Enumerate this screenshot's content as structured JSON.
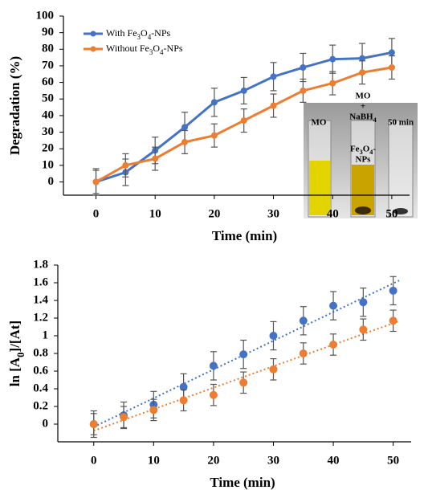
{
  "chart_data": [
    {
      "type": "line",
      "x": [
        0,
        5,
        10,
        15,
        20,
        25,
        30,
        35,
        40,
        45,
        50
      ],
      "series": [
        {
          "name": "With Fe3O4-NPs",
          "color": "#4472c4",
          "values": [
            0,
            5.8,
            19,
            33,
            48,
            55,
            63.5,
            69,
            74,
            74.5,
            78
          ],
          "errors": [
            8,
            8,
            8,
            9,
            8.5,
            8,
            8.5,
            8.5,
            8.5,
            9,
            8.5
          ]
        },
        {
          "name": "Without Fe3O4-NPs",
          "color": "#ed7d31",
          "values": [
            0,
            10,
            14,
            24,
            28,
            37,
            46,
            55,
            59.5,
            66,
            69
          ],
          "errors": [
            7,
            7,
            7,
            7,
            7,
            7,
            7,
            7,
            7,
            7,
            7
          ]
        }
      ],
      "xlim": [
        -5.5,
        53
      ],
      "ylim": [
        -8,
        100
      ],
      "xticks": [
        0,
        10,
        20,
        30,
        40,
        50
      ],
      "yticks": [
        0,
        10,
        20,
        30,
        40,
        50,
        60,
        70,
        80,
        90,
        100
      ],
      "xlabel": "Time (min)",
      "ylabel": "Degradation  (%)",
      "legend": "upper left",
      "inset_labels": [
        [
          "MO"
        ],
        [
          "MO",
          "+",
          "NaBH4"
        ],
        [
          "Fe3O4-",
          "NPs"
        ],
        [
          "50 min"
        ]
      ]
    },
    {
      "type": "scatter",
      "x": [
        0,
        5,
        10,
        15,
        20,
        25,
        30,
        35,
        40,
        45,
        50
      ],
      "series": [
        {
          "color": "#4472c4",
          "values": [
            0,
            0.1,
            0.22,
            0.42,
            0.66,
            0.79,
            1.0,
            1.17,
            1.34,
            1.38,
            1.51
          ],
          "errors": [
            0.15,
            0.15,
            0.15,
            0.15,
            0.16,
            0.16,
            0.16,
            0.16,
            0.16,
            0.16,
            0.16
          ]
        },
        {
          "color": "#ed7d31",
          "values": [
            0,
            0.08,
            0.16,
            0.27,
            0.33,
            0.47,
            0.62,
            0.8,
            0.9,
            1.07,
            1.17
          ],
          "errors": [
            0.12,
            0.12,
            0.12,
            0.12,
            0.12,
            0.12,
            0.12,
            0.12,
            0.12,
            0.12,
            0.12
          ]
        }
      ],
      "xlim": [
        -6,
        53
      ],
      "ylim": [
        -0.2,
        1.8
      ],
      "xticks": [
        0,
        10,
        20,
        30,
        40,
        50
      ],
      "yticks": [
        0,
        0.2,
        0.4,
        0.6,
        0.8,
        1,
        1.2,
        1.4,
        1.6,
        1.8
      ],
      "xlabel": "Time (min)",
      "ylabel": "ln [A0]/[At]",
      "trendline": true
    }
  ]
}
